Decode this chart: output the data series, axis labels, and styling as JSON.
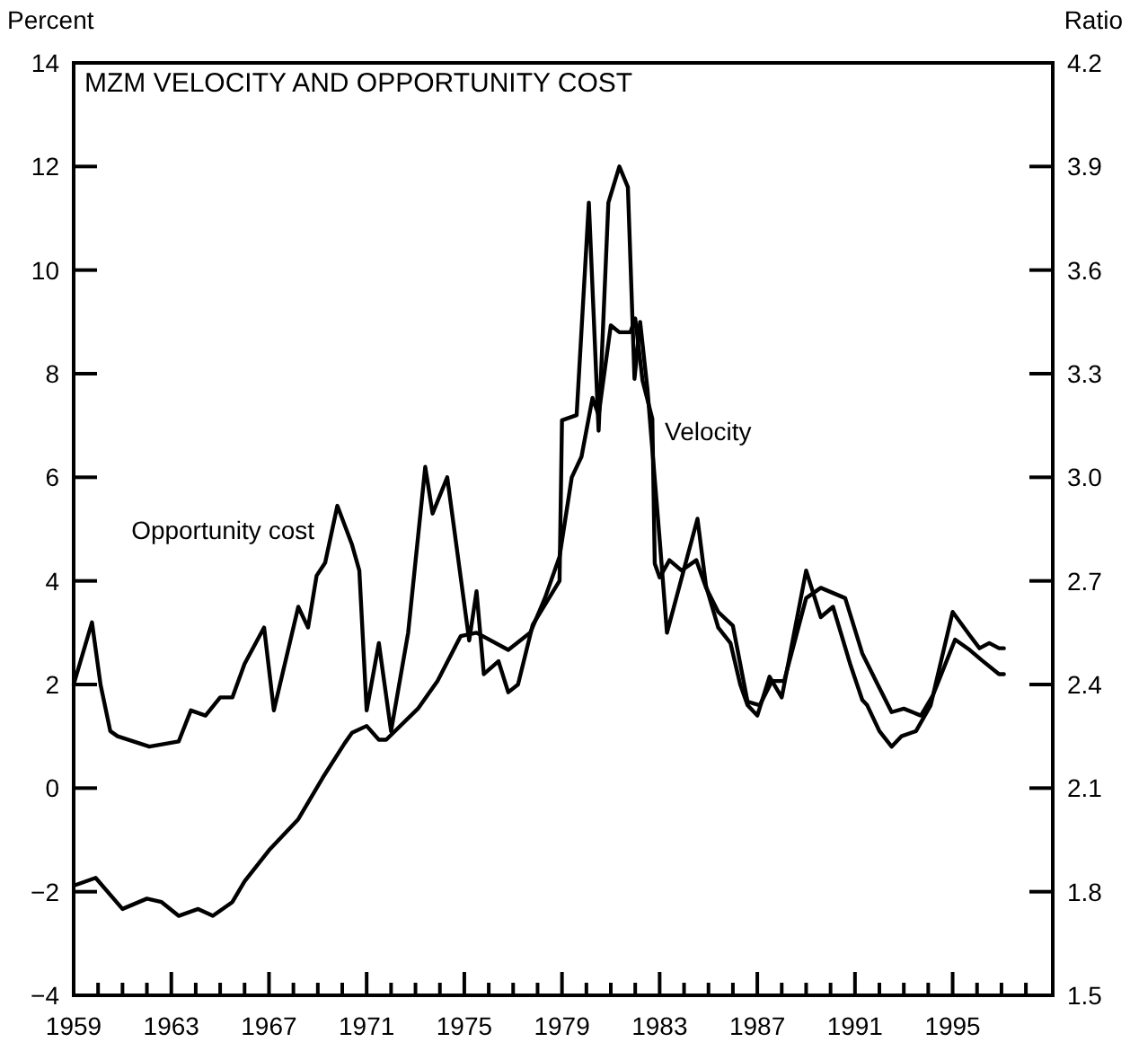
{
  "chart_data": {
    "type": "line",
    "title": "MZM VELOCITY AND OPPORTUNITY COST",
    "ylabel": "Percent",
    "y2label": "Ratio",
    "xlim": [
      1959,
      1999.1
    ],
    "xticks": [
      1959,
      {
        "value": 1960,
        "label": null
      },
      {
        "value": 1961,
        "label": null
      },
      {
        "value": 1962,
        "label": null
      },
      1963,
      {
        "value": 1964,
        "label": null
      },
      {
        "value": 1965,
        "label": null
      },
      {
        "value": 1966,
        "label": null
      },
      1967,
      {
        "value": 1968,
        "label": null
      },
      {
        "value": 1969,
        "label": null
      },
      {
        "value": 1970,
        "label": null
      },
      1971,
      {
        "value": 1972,
        "label": null
      },
      {
        "value": 1973,
        "label": null
      },
      {
        "value": 1974,
        "label": null
      },
      1975,
      {
        "value": 1976,
        "label": null
      },
      {
        "value": 1977,
        "label": null
      },
      {
        "value": 1978,
        "label": null
      },
      1979,
      {
        "value": 1980,
        "label": null
      },
      {
        "value": 1981,
        "label": null
      },
      {
        "value": 1982,
        "label": null
      },
      1983,
      {
        "value": 1984,
        "label": null
      },
      {
        "value": 1985,
        "label": null
      },
      {
        "value": 1986,
        "label": null
      },
      1987,
      {
        "value": 1988,
        "label": null
      },
      {
        "value": 1989,
        "label": null
      },
      {
        "value": 1990,
        "label": null
      },
      1991,
      {
        "value": 1992,
        "label": null
      },
      {
        "value": 1993,
        "label": null
      },
      {
        "value": 1994,
        "label": null
      },
      1995,
      {
        "value": 1996,
        "label": null
      },
      {
        "value": 1997,
        "label": null
      },
      {
        "value": 1998,
        "label": null
      }
    ],
    "ylim": [
      -4,
      14
    ],
    "yticks": [
      -4,
      -2,
      0,
      2,
      4,
      6,
      8,
      10,
      12,
      14
    ],
    "y2lim": [
      1.5,
      4.2
    ],
    "y2ticks": [
      1.5,
      1.8,
      2.1,
      2.4,
      2.7,
      {
        "value": 3.0,
        "label": "3.0"
      },
      3.3,
      3.6,
      3.9,
      4.2
    ],
    "legend": false,
    "marker": "none",
    "line_style": "solid",
    "series": [
      {
        "name": "Opportunity cost",
        "color": "#000000",
        "x": [
          1959.0,
          1959.75,
          1960.1,
          1960.5,
          1960.8,
          1962.1,
          1963.3,
          1963.8,
          1964.4,
          1965.0,
          1965.5,
          1966.0,
          1966.8,
          1967.2,
          1968.2,
          1968.6,
          1968.95,
          1969.3,
          1969.8,
          1970.4,
          1970.7,
          1971.0,
          1971.5,
          1972.0,
          1972.7,
          1973.4,
          1973.7,
          1974.3,
          1975.2,
          1975.5,
          1975.8,
          1976.4,
          1976.8,
          1977.2,
          1977.8,
          1978.9,
          1979.0,
          1979.6,
          1980.1,
          1980.5,
          1980.9,
          1981.35,
          1981.7,
          1981.97,
          1982.2,
          1982.5,
          1983.0,
          1983.3,
          1984.55,
          1984.9,
          1985.4,
          1985.9,
          1986.3,
          1986.6,
          1987.0,
          1987.5,
          1988.0,
          1989.0,
          1989.6,
          1990.1,
          1990.8,
          1991.3,
          1991.5,
          1992.0,
          1992.5,
          1992.9,
          1993.5,
          1994.1,
          1995.0,
          1995.7,
          1996.1,
          1996.5,
          1996.9,
          1997.1
        ],
        "values": [
          2.0,
          3.2,
          2.0,
          1.1,
          1.0,
          0.8,
          0.9,
          1.5,
          1.4,
          1.75,
          1.75,
          2.4,
          3.1,
          1.5,
          3.5,
          3.1,
          4.1,
          4.35,
          5.45,
          4.7,
          4.2,
          1.5,
          2.8,
          1.1,
          3.0,
          6.2,
          5.3,
          6.0,
          2.85,
          3.8,
          2.2,
          2.45,
          1.85,
          2.0,
          3.15,
          4.0,
          7.1,
          7.2,
          11.3,
          6.9,
          11.3,
          12.0,
          11.6,
          7.9,
          9.0,
          7.7,
          4.8,
          3.0,
          5.2,
          3.9,
          3.1,
          2.8,
          2.0,
          1.6,
          1.4,
          2.15,
          1.75,
          4.2,
          3.3,
          3.5,
          2.4,
          1.7,
          1.6,
          1.1,
          0.8,
          1.0,
          1.1,
          1.6,
          3.4,
          2.95,
          2.7,
          2.8,
          2.7,
          2.7
        ]
      },
      {
        "name": "Velocity",
        "color": "#000000",
        "axis": "y2",
        "x": [
          1959.1,
          1959.9,
          1961.0,
          1962.0,
          1962.6,
          1963.3,
          1964.1,
          1964.7,
          1965.5,
          1966.0,
          1967.0,
          1968.2,
          1969.2,
          1970.1,
          1970.4,
          1971.0,
          1971.5,
          1971.8,
          1973.1,
          1973.9,
          1974.85,
          1975.5,
          1976.8,
          1977.7,
          1978.3,
          1978.9,
          1979.4,
          1979.8,
          1980.25,
          1980.5,
          1981.0,
          1981.35,
          1981.8,
          1982.0,
          1982.3,
          1982.7,
          1982.8,
          1983.0,
          1983.4,
          1983.9,
          1984.5,
          1984.9,
          1985.4,
          1986.0,
          1986.6,
          1987.1,
          1987.6,
          1988.1,
          1989.0,
          1989.6,
          1990.6,
          1991.3,
          1992.0,
          1992.5,
          1993.0,
          1993.7,
          1994.2,
          1995.1,
          1995.7,
          1996.2,
          1996.9,
          1997.1
        ],
        "values": [
          1.82,
          1.84,
          1.75,
          1.78,
          1.77,
          1.73,
          1.75,
          1.73,
          1.77,
          1.83,
          1.92,
          2.01,
          2.13,
          2.23,
          2.26,
          2.28,
          2.24,
          2.24,
          2.33,
          2.41,
          2.54,
          2.55,
          2.5,
          2.55,
          2.65,
          2.77,
          3.0,
          3.06,
          3.23,
          3.18,
          3.44,
          3.42,
          3.42,
          3.46,
          3.28,
          3.17,
          2.75,
          2.71,
          2.76,
          2.73,
          2.76,
          2.68,
          2.61,
          2.57,
          2.35,
          2.34,
          2.41,
          2.41,
          2.65,
          2.68,
          2.65,
          2.49,
          2.39,
          2.32,
          2.33,
          2.31,
          2.37,
          2.53,
          2.5,
          2.47,
          2.43,
          2.43
        ]
      }
    ]
  }
}
